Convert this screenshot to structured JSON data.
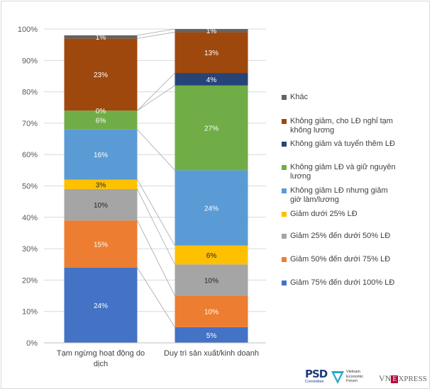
{
  "chart_data": {
    "type": "bar",
    "stacked": true,
    "categories": [
      "Tạm ngừng hoạt động do dịch",
      "Duy trì sản xuất/kinh doanh"
    ],
    "category_labels": [
      [
        "Tạm ngừng hoạt động do",
        "dịch"
      ],
      [
        "Duy trì sản xuất/kinh doanh"
      ]
    ],
    "ylim": [
      0,
      100
    ],
    "y_ticks": [
      "0%",
      "10%",
      "20%",
      "30%",
      "40%",
      "50%",
      "60%",
      "70%",
      "80%",
      "90%",
      "100%"
    ],
    "grid": true,
    "legend_position": "right",
    "series": [
      {
        "name": "Giảm 75% đến dưới 100% LĐ",
        "legend_lines": [
          "Giảm 75% đến dưới 100% LĐ"
        ],
        "color": "#4472c4",
        "values": [
          24,
          5
        ],
        "labels": [
          "24%",
          "5%"
        ]
      },
      {
        "name": "Giảm 50% đến dưới 75% LĐ",
        "legend_lines": [
          "Giảm 50% đến dưới 75% LĐ"
        ],
        "color": "#ed7d31",
        "values": [
          15,
          10
        ],
        "labels": [
          "15%",
          "10%"
        ]
      },
      {
        "name": "Giảm 25% đến dưới 50% LĐ",
        "legend_lines": [
          "Giảm 25% đến dưới 50% LĐ"
        ],
        "color": "#a5a5a5",
        "values": [
          10,
          10
        ],
        "labels": [
          "10%",
          "10%"
        ]
      },
      {
        "name": "Giảm dưới 25% LĐ",
        "legend_lines": [
          "Giảm dưới 25% LĐ"
        ],
        "color": "#ffc000",
        "values": [
          3,
          6
        ],
        "labels": [
          "3%",
          "6%"
        ]
      },
      {
        "name": "Không giảm LĐ nhưng giảm giờ làm/lương",
        "legend_lines": [
          "Không giảm LĐ nhưng giảm",
          "giờ làm/lương"
        ],
        "color": "#5b9bd5",
        "values": [
          16,
          24
        ],
        "labels": [
          "16%",
          "24%"
        ]
      },
      {
        "name": "Không giảm LĐ và giữ nguyên lương",
        "legend_lines": [
          "Không giảm LĐ và giữ nguyên",
          "lương"
        ],
        "color": "#70ad47",
        "values": [
          6,
          27
        ],
        "labels": [
          "6%",
          "27%"
        ]
      },
      {
        "name": "Không giảm và tuyển thêm LĐ",
        "legend_lines": [
          "Không giảm và tuyển thêm LĐ"
        ],
        "color": "#264478",
        "values": [
          0,
          4
        ],
        "labels": [
          "0%",
          "4%"
        ]
      },
      {
        "name": "Không giảm, cho LĐ nghỉ tạm không lương",
        "legend_lines": [
          "Không giảm, cho LĐ nghỉ tạm",
          "không lương"
        ],
        "color": "#9e480e",
        "values": [
          23,
          13
        ],
        "labels": [
          "23%",
          "13%"
        ]
      },
      {
        "name": "Khác",
        "legend_lines": [
          "Khác"
        ],
        "color": "#636363",
        "values": [
          1,
          1
        ],
        "labels": [
          "1%",
          "1%"
        ]
      }
    ]
  },
  "logos": {
    "psd_big": "PSD",
    "psd_small": "Committee",
    "vef_lines": [
      "Vietnam",
      "Economic",
      "Forum"
    ],
    "vnexpress_vn": "VN",
    "vnexpress_e": "E",
    "vnexpress_rest": "XPRESS"
  }
}
